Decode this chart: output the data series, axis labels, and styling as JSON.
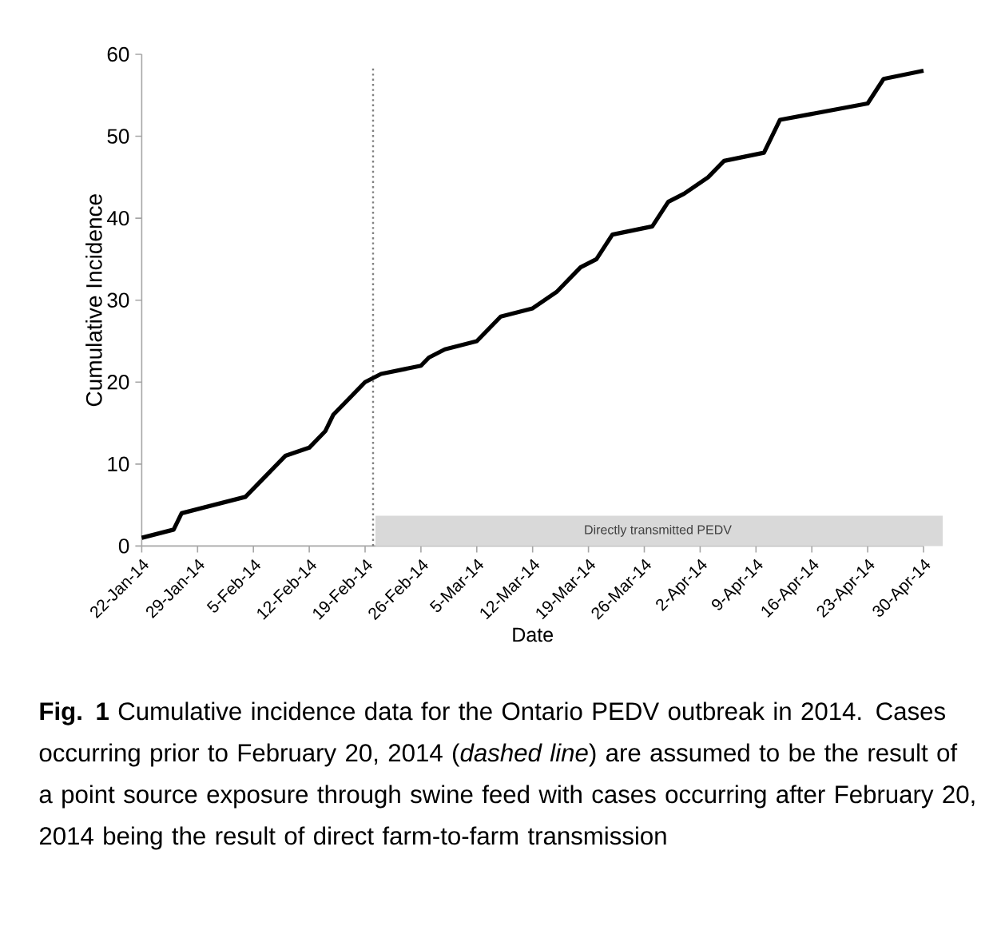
{
  "chart_data": {
    "type": "line",
    "xlabel": "Date",
    "ylabel": "Cumulative Incidence",
    "x": [
      "2014-01-22",
      "2014-01-26",
      "2014-01-27",
      "2014-02-04",
      "2014-02-06",
      "2014-02-09",
      "2014-02-12",
      "2014-02-14",
      "2014-02-15",
      "2014-02-19",
      "2014-02-21",
      "2014-02-26",
      "2014-02-27",
      "2014-03-01",
      "2014-03-05",
      "2014-03-08",
      "2014-03-12",
      "2014-03-15",
      "2014-03-18",
      "2014-03-20",
      "2014-03-22",
      "2014-03-27",
      "2014-03-29",
      "2014-03-31",
      "2014-04-03",
      "2014-04-05",
      "2014-04-10",
      "2014-04-12",
      "2014-04-23",
      "2014-04-25",
      "2014-04-30"
    ],
    "series": [
      {
        "color": "#000000",
        "values": [
          1,
          2,
          4,
          6,
          8,
          11,
          12,
          14,
          16,
          20,
          21,
          22,
          23,
          24,
          25,
          28,
          29,
          31,
          34,
          35,
          38,
          39,
          42,
          43,
          45,
          47,
          48,
          52,
          54,
          57,
          58
        ]
      }
    ],
    "marker": "none",
    "xlim": [
      "2014-01-22",
      "2014-04-30"
    ],
    "xticks": [
      {
        "value": "2014-01-22",
        "label": "22-Jan-14"
      },
      {
        "value": "2014-01-29",
        "label": "29-Jan-14"
      },
      {
        "value": "2014-02-05",
        "label": "5-Feb-14"
      },
      {
        "value": "2014-02-12",
        "label": "12-Feb-14"
      },
      {
        "value": "2014-02-19",
        "label": "19-Feb-14"
      },
      {
        "value": "2014-02-26",
        "label": "26-Feb-14"
      },
      {
        "value": "2014-03-05",
        "label": "5-Mar-14"
      },
      {
        "value": "2014-03-12",
        "label": "12-Mar-14"
      },
      {
        "value": "2014-03-19",
        "label": "19-Mar-14"
      },
      {
        "value": "2014-03-26",
        "label": "26-Mar-14"
      },
      {
        "value": "2014-04-02",
        "label": "2-Apr-14"
      },
      {
        "value": "2014-04-09",
        "label": "9-Apr-14"
      },
      {
        "value": "2014-04-16",
        "label": "16-Apr-14"
      },
      {
        "value": "2014-04-23",
        "label": "23-Apr-14"
      },
      {
        "value": "2014-04-30",
        "label": "30-Apr-14"
      }
    ],
    "ylim": [
      0,
      60
    ],
    "yticks": [
      0,
      10,
      20,
      30,
      40,
      50,
      60
    ],
    "ref_lines": [
      {
        "axis": "x",
        "value": "2014-02-20",
        "color": "#808080",
        "line_style": "dotted"
      }
    ],
    "bands": [
      {
        "axis": "x",
        "from": "2014-02-20",
        "to": "2014-04-30",
        "label": "Directly transmitted PEDV",
        "color": "#d9d9d9"
      }
    ],
    "annotations": [
      "**Fig. 1** Cumulative incidence data for the Ontario PEDV outbreak in 2014. Cases occurring prior to February 20, 2014 (*dashed line*) are assumed to be the result of a point source exposure through swine feed with cases occurring after February 20, 2014 being the result of direct farm-to-farm transmission"
    ]
  }
}
